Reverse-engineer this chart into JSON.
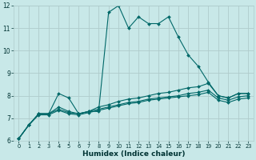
{
  "xlabel": "Humidex (Indice chaleur)",
  "bg_color": "#c8e8e8",
  "line_color": "#006868",
  "grid_color": "#b0cccc",
  "xlim": [
    -0.5,
    23.5
  ],
  "ylim": [
    6,
    12
  ],
  "xticks": [
    0,
    1,
    2,
    3,
    4,
    5,
    6,
    7,
    8,
    9,
    10,
    11,
    12,
    13,
    14,
    15,
    16,
    17,
    18,
    19,
    20,
    21,
    22,
    23
  ],
  "yticks": [
    6,
    7,
    8,
    9,
    10,
    11,
    12
  ],
  "series": [
    [
      6.1,
      6.7,
      7.2,
      7.2,
      8.1,
      7.9,
      7.2,
      7.3,
      7.3,
      11.7,
      12.0,
      11.0,
      11.5,
      11.2,
      11.2,
      11.5,
      10.6,
      9.8,
      9.3,
      8.6,
      8.0,
      7.9,
      8.1,
      8.1
    ],
    [
      6.1,
      6.7,
      7.2,
      7.2,
      7.5,
      7.3,
      7.2,
      7.3,
      7.5,
      7.6,
      7.75,
      7.85,
      7.9,
      8.0,
      8.1,
      8.15,
      8.25,
      8.35,
      8.4,
      8.55,
      8.0,
      7.9,
      8.1,
      8.1
    ],
    [
      6.1,
      6.7,
      7.2,
      7.2,
      7.4,
      7.25,
      7.2,
      7.3,
      7.4,
      7.5,
      7.6,
      7.7,
      7.75,
      7.85,
      7.9,
      7.95,
      8.0,
      8.1,
      8.15,
      8.25,
      7.9,
      7.8,
      7.95,
      8.0
    ],
    [
      6.1,
      6.7,
      7.15,
      7.15,
      7.35,
      7.2,
      7.15,
      7.25,
      7.35,
      7.45,
      7.55,
      7.65,
      7.7,
      7.8,
      7.85,
      7.9,
      7.95,
      8.0,
      8.05,
      8.15,
      7.8,
      7.7,
      7.85,
      7.9
    ]
  ]
}
